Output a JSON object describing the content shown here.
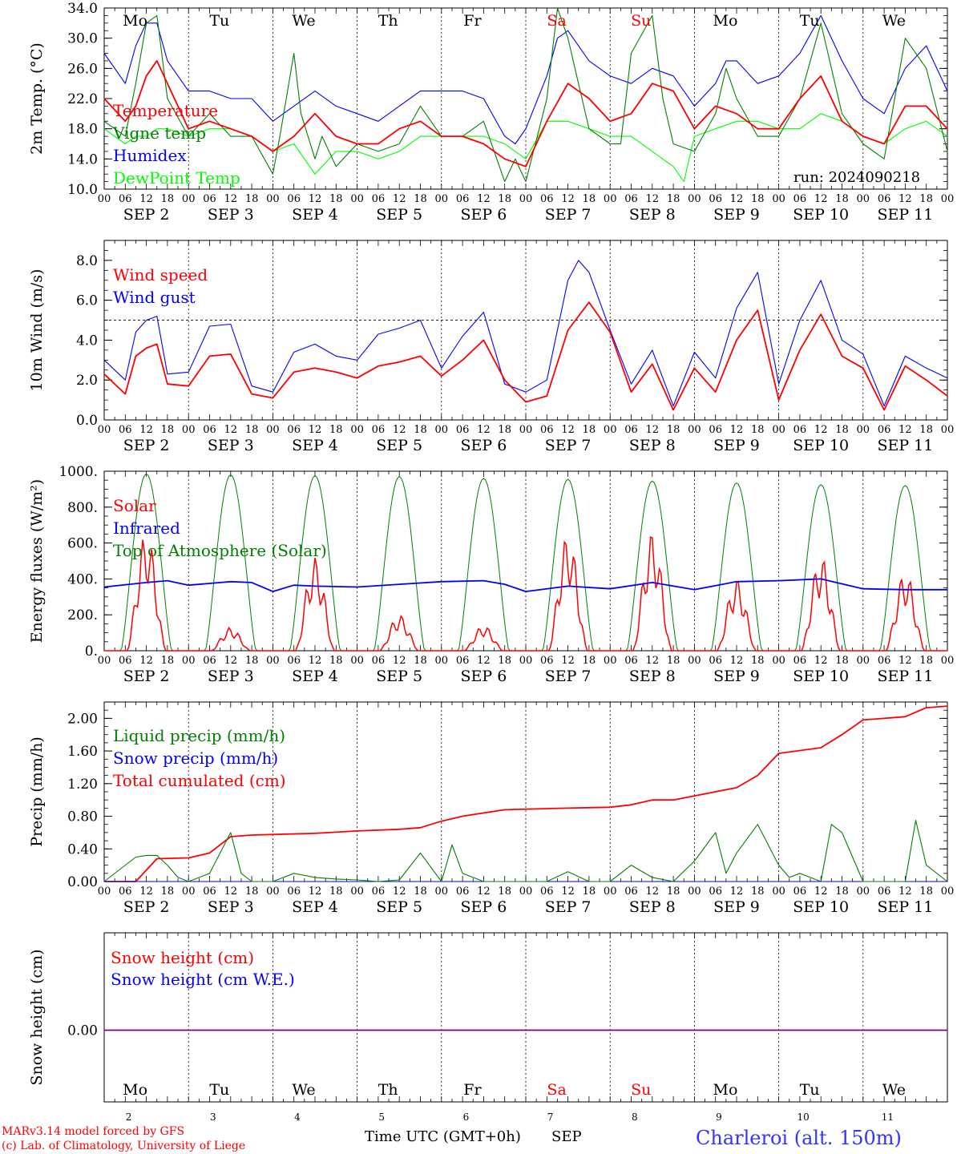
{
  "run_label": "run: 2024090218",
  "x_axis": {
    "hour_labels": [
      "00",
      "06",
      "12",
      "18"
    ],
    "end_label": "00",
    "date_labels": [
      "SEP  2",
      "SEP  3",
      "SEP  4",
      "SEP  5",
      "SEP  6",
      "SEP  7",
      "SEP  8",
      "SEP  9",
      "SEP 10",
      "SEP 11"
    ],
    "day_names": [
      "Mo",
      "Tu",
      "We",
      "Th",
      "Fr",
      "Sa",
      "Su",
      "Mo",
      "Tu",
      "We"
    ],
    "day_numbers": [
      "2",
      "3",
      "4",
      "5",
      "6",
      "7",
      "8",
      "9",
      "10",
      "11"
    ],
    "weekend_days": [
      5,
      6
    ],
    "title": "Time UTC (GMT+0h)",
    "month": "SEP"
  },
  "footer": {
    "model": "MARv3.14 model forced by GFS",
    "credit": "(c) Lab. of Climatology, University of Liege",
    "location": "Charleroi (alt. 150m)"
  },
  "colors": {
    "red": "#ff0000",
    "green": "#008000",
    "blue": "#0000ff",
    "lightgreen": "#00ff00",
    "purple": "#7f007f",
    "weekend": "#ff0000",
    "grid": "#000000"
  },
  "chart_data": [
    {
      "type": "line",
      "ylabel": "2m Temp. (°C)",
      "ylim": [
        10,
        34
      ],
      "ytick_labels": [
        "10.0",
        "14.0",
        "18.0",
        "22.0",
        "26.0",
        "30.0",
        "34.0"
      ],
      "x_unit": "hours since SEP 2 00 UTC",
      "series": [
        {
          "name": "Temperature",
          "color": "red",
          "x": [
            0,
            6,
            9,
            12,
            15,
            18,
            24,
            30,
            36,
            42,
            48,
            54,
            60,
            66,
            72,
            78,
            84,
            90,
            96,
            102,
            108,
            114,
            120,
            126,
            132,
            138,
            144,
            150,
            156,
            162,
            168,
            174,
            180,
            186,
            192,
            198,
            204,
            210,
            216,
            222,
            228,
            234,
            240
          ],
          "values": [
            22,
            19,
            21,
            25,
            27,
            24,
            18,
            19,
            18,
            17,
            15,
            17,
            20,
            17,
            16,
            16,
            18,
            19,
            17,
            17,
            16,
            14,
            13,
            19,
            24,
            22,
            19,
            20,
            24,
            23,
            18,
            21,
            20,
            18,
            18,
            22,
            25,
            19,
            17,
            16,
            21,
            21,
            18
          ]
        },
        {
          "name": "Vigne temp",
          "color": "green",
          "x": [
            0,
            6,
            9,
            12,
            15,
            18,
            24,
            30,
            36,
            42,
            48,
            50,
            54,
            56,
            60,
            62,
            66,
            72,
            78,
            84,
            90,
            96,
            102,
            108,
            114,
            117,
            120,
            126,
            129,
            132,
            138,
            144,
            147,
            150,
            156,
            159,
            162,
            168,
            174,
            177,
            180,
            186,
            192,
            198,
            204,
            210,
            216,
            222,
            228,
            234,
            240
          ],
          "values": [
            19,
            17,
            24,
            32,
            33,
            22,
            17,
            20,
            17,
            17,
            12,
            17,
            28,
            20,
            14,
            17,
            13,
            16,
            15,
            16,
            21,
            17,
            17,
            19,
            11,
            14,
            11,
            22,
            34,
            30,
            18,
            16,
            16,
            28,
            33,
            22,
            16,
            15,
            20,
            26,
            22,
            17,
            17,
            22,
            32,
            20,
            16,
            14,
            30,
            26,
            15
          ]
        },
        {
          "name": "Humidex",
          "color": "blue",
          "x": [
            0,
            6,
            9,
            12,
            15,
            18,
            24,
            30,
            36,
            42,
            48,
            54,
            60,
            66,
            72,
            78,
            84,
            90,
            96,
            102,
            108,
            114,
            117,
            120,
            126,
            129,
            132,
            138,
            144,
            150,
            156,
            162,
            168,
            174,
            177,
            180,
            186,
            192,
            198,
            204,
            210,
            216,
            222,
            228,
            234,
            240
          ],
          "values": [
            28,
            24,
            29,
            32,
            32,
            27,
            23,
            23,
            22,
            22,
            19,
            21,
            23,
            21,
            20,
            19,
            21,
            23,
            23,
            23,
            22,
            17,
            16,
            18,
            25,
            30,
            31,
            27,
            25,
            24,
            26,
            25,
            21,
            24,
            27,
            27,
            24,
            25,
            28,
            33,
            27,
            22,
            20,
            26,
            29,
            23
          ]
        },
        {
          "name": "DewPoint Temp",
          "color": "lightgreen",
          "x": [
            0,
            6,
            9,
            12,
            15,
            18,
            24,
            30,
            36,
            42,
            48,
            54,
            60,
            66,
            72,
            78,
            84,
            90,
            96,
            102,
            108,
            114,
            120,
            126,
            132,
            138,
            144,
            150,
            156,
            162,
            165,
            168,
            174,
            180,
            186,
            192,
            198,
            204,
            210,
            216,
            222,
            228,
            234,
            240
          ],
          "values": [
            18,
            16,
            17,
            17,
            18,
            18,
            17,
            18,
            18,
            17,
            15,
            16,
            12,
            15,
            15,
            14,
            15,
            17,
            17,
            17,
            17,
            16,
            14,
            19,
            19,
            18,
            17,
            17,
            15,
            13,
            11,
            17,
            18,
            19,
            19,
            18,
            18,
            20,
            19,
            17,
            16,
            18,
            19,
            17
          ]
        }
      ]
    },
    {
      "type": "line",
      "ylabel": "10m Wind (m/s)",
      "ylim": [
        0,
        9
      ],
      "ytick_labels": [
        "0.0",
        "2.0",
        "4.0",
        "6.0",
        "8.0"
      ],
      "reference_line": 5,
      "x_unit": "hours since SEP 2 00 UTC",
      "series": [
        {
          "name": "Wind speed",
          "color": "red",
          "x": [
            0,
            6,
            9,
            12,
            15,
            18,
            24,
            30,
            36,
            42,
            48,
            54,
            60,
            66,
            72,
            78,
            84,
            90,
            96,
            102,
            108,
            114,
            120,
            126,
            132,
            138,
            144,
            150,
            156,
            162,
            168,
            174,
            180,
            186,
            192,
            198,
            204,
            210,
            216,
            222,
            228,
            234,
            240
          ],
          "values": [
            2.3,
            1.3,
            3.2,
            3.6,
            3.8,
            1.8,
            1.7,
            3.2,
            3.3,
            1.3,
            1.1,
            2.4,
            2.6,
            2.4,
            2.1,
            2.7,
            2.9,
            3.2,
            2.2,
            3.0,
            4.0,
            2.0,
            0.9,
            1.2,
            4.5,
            5.9,
            4.4,
            1.4,
            2.8,
            0.5,
            2.6,
            1.4,
            4.0,
            5.5,
            1.0,
            3.5,
            5.3,
            3.2,
            2.6,
            0.5,
            2.7,
            2.0,
            1.2
          ]
        },
        {
          "name": "Wind gust",
          "color": "blue",
          "x": [
            0,
            6,
            9,
            12,
            15,
            18,
            24,
            30,
            36,
            42,
            48,
            54,
            60,
            66,
            72,
            78,
            84,
            90,
            96,
            102,
            108,
            114,
            120,
            126,
            132,
            135,
            138,
            144,
            150,
            156,
            162,
            168,
            174,
            180,
            186,
            192,
            198,
            204,
            210,
            216,
            222,
            228,
            234,
            240
          ],
          "values": [
            3.0,
            2.0,
            4.4,
            5.0,
            5.2,
            2.3,
            2.4,
            4.7,
            4.8,
            1.7,
            1.4,
            3.4,
            3.8,
            3.2,
            3.0,
            4.3,
            4.6,
            5.0,
            2.6,
            4.2,
            5.4,
            1.8,
            1.4,
            2.0,
            7.0,
            8.0,
            7.4,
            4.5,
            1.8,
            3.5,
            0.7,
            3.4,
            2.1,
            5.6,
            7.4,
            1.8,
            5.0,
            7.0,
            4.0,
            3.3,
            0.7,
            3.2,
            2.6,
            2.1
          ]
        }
      ]
    },
    {
      "type": "line",
      "ylabel": "Energy fluxes (W/m²)",
      "ylim": [
        0,
        1000
      ],
      "ytick_labels": [
        "0.",
        "200.",
        "400.",
        "600.",
        "800.",
        "1000."
      ],
      "x_unit": "hours since SEP 2 00 UTC",
      "series": [
        {
          "name": "Solar",
          "color": "red",
          "peak_values": [
            660,
            130,
            520,
            200,
            140,
            650,
            660,
            400,
            530,
            440
          ]
        },
        {
          "name": "Infrared",
          "color": "blue",
          "x": [
            0,
            12,
            18,
            24,
            36,
            42,
            48,
            54,
            60,
            72,
            84,
            96,
            108,
            114,
            120,
            132,
            144,
            156,
            168,
            180,
            192,
            204,
            216,
            228,
            240
          ],
          "values": [
            355,
            380,
            390,
            365,
            385,
            380,
            330,
            365,
            360,
            355,
            370,
            385,
            390,
            370,
            330,
            360,
            345,
            380,
            340,
            385,
            390,
            400,
            345,
            340,
            340
          ]
        },
        {
          "name": "Top of Atmosphere (Solar)",
          "color": "green",
          "peak_values": [
            985,
            980,
            975,
            970,
            960,
            955,
            945,
            935,
            925,
            920
          ]
        }
      ]
    },
    {
      "type": "line",
      "ylabel": "Precip (mm/h)",
      "ylim": [
        0,
        2.2
      ],
      "ytick_labels": [
        "0.00",
        "0.40",
        "0.80",
        "1.20",
        "1.60",
        "2.00"
      ],
      "x_unit": "hours since SEP 2 00 UTC",
      "series": [
        {
          "name": "Liquid precip (mm/h)",
          "color": "green",
          "x": [
            0,
            9,
            12,
            15,
            18,
            21,
            24,
            30,
            36,
            39,
            42,
            48,
            54,
            60,
            66,
            72,
            78,
            84,
            90,
            96,
            99,
            102,
            105,
            108,
            114,
            120,
            126,
            132,
            138,
            144,
            150,
            156,
            162,
            168,
            174,
            177,
            180,
            186,
            192,
            195,
            198,
            204,
            207,
            210,
            216,
            222,
            228,
            231,
            234,
            240
          ],
          "values": [
            0,
            0.3,
            0.32,
            0.32,
            0.2,
            0.05,
            0,
            0.1,
            0.6,
            0.1,
            0,
            0,
            0.1,
            0.05,
            0.03,
            0.02,
            0,
            0.02,
            0.35,
            0,
            0.45,
            0.1,
            0.05,
            0,
            0,
            0,
            0,
            0.12,
            0,
            0,
            0.2,
            0.05,
            0,
            0.25,
            0.6,
            0.1,
            0.35,
            0.7,
            0.2,
            0.05,
            0.1,
            0,
            0.7,
            0.6,
            0,
            0,
            0,
            0.75,
            0.2,
            0
          ]
        },
        {
          "name": "Snow precip (mm/h)",
          "color": "blue",
          "x": [
            0,
            240
          ],
          "values": [
            0,
            0
          ]
        },
        {
          "name": "Total cumulated (cm)",
          "color": "red",
          "x": [
            0,
            9,
            15,
            24,
            30,
            36,
            42,
            60,
            72,
            84,
            90,
            96,
            102,
            114,
            132,
            144,
            150,
            156,
            162,
            168,
            180,
            186,
            192,
            204,
            210,
            216,
            222,
            228,
            234,
            240
          ],
          "values": [
            0,
            0,
            0.28,
            0.29,
            0.35,
            0.55,
            0.57,
            0.59,
            0.62,
            0.64,
            0.66,
            0.74,
            0.8,
            0.88,
            0.9,
            0.91,
            0.94,
            1.0,
            1.0,
            1.05,
            1.15,
            1.3,
            1.57,
            1.64,
            1.8,
            1.98,
            2.0,
            2.02,
            2.13,
            2.15
          ]
        }
      ]
    },
    {
      "type": "line",
      "ylabel": "Snow height (cm)",
      "ytick_labels": [
        "0.00"
      ],
      "x_unit": "hours since SEP 2 00 UTC",
      "series": [
        {
          "name": "Snow height (cm)",
          "color": "red",
          "x": [
            0,
            240
          ],
          "values": [
            0,
            0
          ]
        },
        {
          "name": "Snow height (cm W.E.)",
          "color": "blue",
          "x": [
            0,
            240
          ],
          "values": [
            0,
            0
          ]
        }
      ]
    }
  ]
}
